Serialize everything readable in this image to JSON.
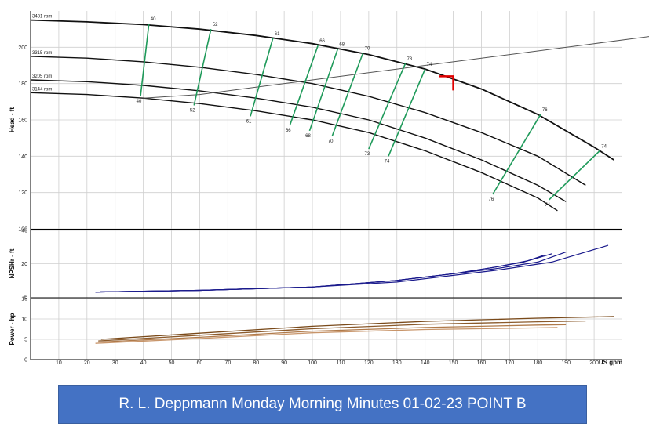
{
  "chart_data": [
    {
      "type": "line",
      "panel": "head",
      "ylabel": "Head - ft",
      "ylim": [
        100,
        220
      ],
      "yticks": [
        100,
        120,
        140,
        160,
        180,
        200
      ],
      "xlim": [
        0,
        210
      ],
      "grid": true,
      "series": [
        {
          "name": "3481 rpm",
          "x": [
            0,
            20,
            40,
            60,
            80,
            100,
            120,
            140,
            160,
            180,
            200,
            207
          ],
          "y": [
            215,
            214,
            212.5,
            210,
            206.5,
            202,
            196,
            188,
            177,
            163,
            145,
            138
          ]
        },
        {
          "name": "3315 rpm",
          "x": [
            0,
            20,
            40,
            60,
            80,
            100,
            120,
            140,
            160,
            180,
            197
          ],
          "y": [
            195,
            194,
            192,
            189,
            185,
            180,
            173,
            164,
            153,
            140,
            124
          ]
        },
        {
          "name": "3205 rpm",
          "x": [
            0,
            20,
            40,
            60,
            80,
            100,
            120,
            140,
            160,
            180,
            190
          ],
          "y": [
            182,
            181,
            179,
            176,
            172,
            167,
            160,
            150,
            138,
            124,
            115
          ]
        },
        {
          "name": "3144 rpm",
          "x": [
            0,
            20,
            40,
            60,
            80,
            100,
            120,
            140,
            160,
            180,
            187
          ],
          "y": [
            175,
            174,
            172,
            169,
            165,
            160,
            153,
            143,
            131,
            117,
            110
          ]
        },
        {
          "name": "",
          "role": "system-curve",
          "x": [
            40,
            60,
            80,
            100,
            120,
            140,
            160,
            180,
            200,
            220
          ],
          "y": [
            172,
            174,
            178,
            182,
            186,
            190,
            194,
            198,
            202,
            206
          ]
        }
      ],
      "efficiency_lines": [
        {
          "top_label": "40",
          "bottom_label": "40",
          "x_top": 42,
          "y_top": 213,
          "x_bottom": 39,
          "y_bottom": 173
        },
        {
          "top_label": "52",
          "bottom_label": "52",
          "x_top": 64,
          "y_top": 210,
          "x_bottom": 58,
          "y_bottom": 168
        },
        {
          "top_label": "61",
          "bottom_label": "61",
          "x_top": 86,
          "y_top": 205,
          "x_bottom": 78,
          "y_bottom": 162
        },
        {
          "top_label": "66",
          "bottom_label": "66",
          "x_top": 102,
          "y_top": 201,
          "x_bottom": 92,
          "y_bottom": 157
        },
        {
          "top_label": "68",
          "bottom_label": "68",
          "x_top": 109,
          "y_top": 199,
          "x_bottom": 99,
          "y_bottom": 154
        },
        {
          "top_label": "70",
          "bottom_label": "70",
          "x_top": 118,
          "y_top": 197,
          "x_bottom": 107,
          "y_bottom": 151
        },
        {
          "top_label": "73",
          "bottom_label": "73",
          "x_top": 133,
          "y_top": 191,
          "x_bottom": 120,
          "y_bottom": 144
        },
        {
          "top_label": "74",
          "bottom_label": "74",
          "x_top": 140,
          "y_top": 188,
          "x_bottom": 127,
          "y_bottom": 140
        },
        {
          "top_label": "76",
          "bottom_label": "76",
          "x_top": 181,
          "y_top": 163,
          "x_bottom": 164,
          "y_bottom": 119
        },
        {
          "top_label": "74",
          "bottom_label": "74",
          "x_top": 202,
          "y_top": 143,
          "x_bottom": 184,
          "y_bottom": 116
        }
      ],
      "design_point": {
        "x": 150,
        "y": 184
      },
      "design_point_color": "#e00000",
      "efficiency_color": "#1f9a5a"
    },
    {
      "type": "line",
      "panel": "npshr",
      "ylabel": "NPSHr - ft",
      "ylim": [
        0,
        40
      ],
      "yticks": [
        0,
        20,
        40
      ],
      "xlim": [
        0,
        210
      ],
      "color": "#1a1a8c",
      "series": [
        {
          "x": [
            23,
            60,
            100,
            130,
            150,
            165,
            175,
            182
          ],
          "y": [
            3,
            4,
            6,
            10,
            14,
            18,
            21,
            25
          ]
        },
        {
          "x": [
            23,
            60,
            100,
            130,
            150,
            165,
            177,
            185
          ],
          "y": [
            3,
            4,
            6,
            10,
            14,
            18,
            22,
            26
          ]
        },
        {
          "x": [
            23,
            60,
            100,
            130,
            150,
            165,
            180,
            190
          ],
          "y": [
            3,
            4,
            6,
            10,
            14,
            17,
            21,
            27
          ]
        },
        {
          "x": [
            23,
            60,
            100,
            130,
            150,
            165,
            185,
            205
          ],
          "y": [
            3,
            4,
            6,
            9,
            13,
            16,
            21,
            31
          ]
        }
      ]
    },
    {
      "type": "line",
      "panel": "power",
      "ylabel": "Power - hp",
      "xlabel": "US gpm",
      "ylim": [
        0,
        15
      ],
      "yticks": [
        0,
        5,
        10,
        15
      ],
      "xlim": [
        0,
        210
      ],
      "xticks": [
        10,
        20,
        30,
        40,
        50,
        60,
        70,
        80,
        90,
        100,
        110,
        120,
        130,
        140,
        150,
        160,
        170,
        180,
        190,
        200
      ],
      "series": [
        {
          "color": "#7a4a1a",
          "x": [
            25,
            60,
            100,
            140,
            180,
            207
          ],
          "y": [
            5.0,
            6.5,
            8.2,
            9.4,
            10.2,
            10.6
          ]
        },
        {
          "color": "#8b5a2b",
          "x": [
            24,
            60,
            100,
            140,
            180,
            197
          ],
          "y": [
            4.6,
            6.0,
            7.6,
            8.7,
            9.3,
            9.5
          ]
        },
        {
          "color": "#b07a4a",
          "x": [
            24,
            60,
            100,
            140,
            180,
            190
          ],
          "y": [
            4.3,
            5.5,
            7.0,
            7.9,
            8.5,
            8.6
          ]
        },
        {
          "color": "#c8956a",
          "x": [
            23,
            60,
            100,
            140,
            180,
            187
          ],
          "y": [
            4.0,
            5.2,
            6.6,
            7.4,
            7.8,
            7.9
          ]
        }
      ]
    }
  ],
  "banner": {
    "text": "R. L. Deppmann Monday Morning Minutes 01-02-23 POINT B"
  }
}
